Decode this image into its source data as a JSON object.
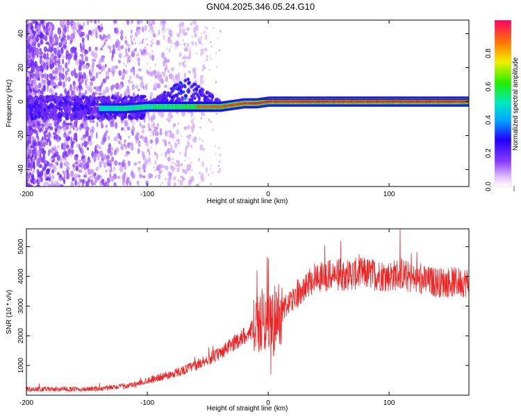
{
  "title": "GN04.2025.346.05.24.G10",
  "chart_data": [
    {
      "type": "heatmap",
      "xlabel": "Height of straight line (km)",
      "ylabel": "Frequency (Hz)",
      "xlim": [
        -200,
        166
      ],
      "ylim": [
        -50,
        48
      ],
      "xticks": [
        -200,
        -100,
        0,
        100
      ],
      "yticks": [
        -40,
        -20,
        0,
        20,
        40
      ],
      "colorbar": {
        "label": "Normalized spectral amplitude",
        "ticks": [
          0.0,
          0.2,
          0.4,
          0.6,
          0.8
        ],
        "range": [
          0,
          1
        ]
      },
      "ridge": {
        "description_points_x": [
          -140,
          -120,
          -100,
          -80,
          -65,
          -50,
          -40,
          -30,
          -20,
          -10,
          0,
          20,
          60,
          100,
          166
        ],
        "description_points_y": [
          -4,
          -4,
          -3,
          -3,
          -3,
          -3,
          -3,
          -2,
          -1,
          -1,
          0,
          0,
          0,
          0,
          0
        ]
      }
    },
    {
      "type": "line",
      "xlabel": "Height of straight line (km)",
      "ylabel": "SNR (10 * v/v)",
      "xlim": [
        -200,
        166
      ],
      "ylim": [
        0,
        5600
      ],
      "xticks": [
        -200,
        -100,
        0,
        100
      ],
      "yticks": [
        1000,
        2000,
        3000,
        4000,
        5000
      ],
      "color": "#ee2222",
      "trend_x": [
        -200,
        -150,
        -130,
        -110,
        -100,
        -80,
        -60,
        -40,
        -30,
        -20,
        -10,
        -5,
        0,
        5,
        10,
        20,
        30,
        40,
        60,
        80,
        100,
        110,
        120,
        140,
        166
      ],
      "trend_y": [
        200,
        200,
        250,
        350,
        500,
        700,
        1000,
        1400,
        1700,
        2000,
        2300,
        2500,
        2800,
        2300,
        2800,
        3200,
        3700,
        4000,
        4050,
        4100,
        4000,
        4100,
        3900,
        3800,
        3800
      ],
      "peaks_x": [
        -1,
        109,
        0,
        2
      ],
      "peaks_y": [
        4650,
        5600,
        4600,
        700
      ]
    }
  ]
}
